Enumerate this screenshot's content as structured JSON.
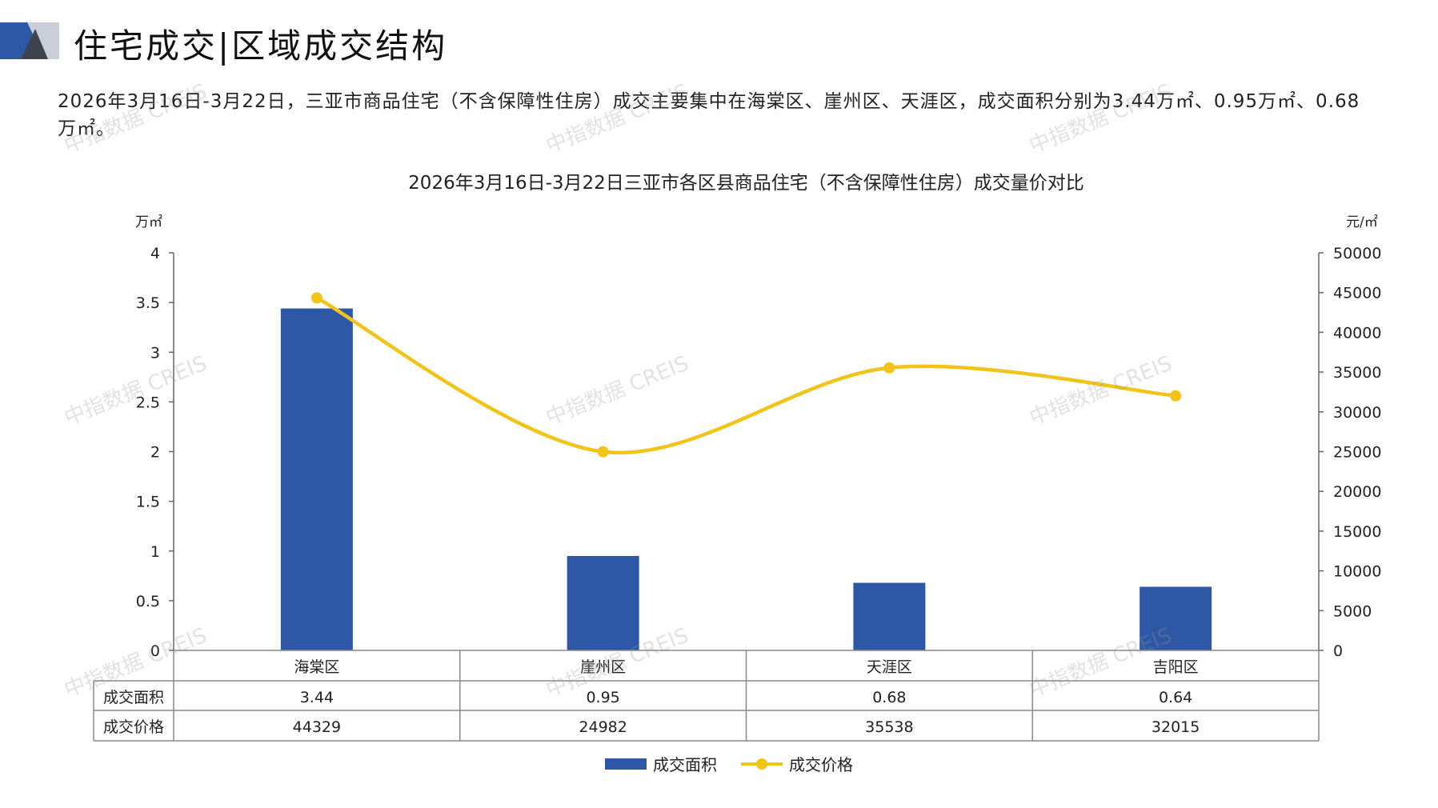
{
  "header": {
    "title": "住宅成交|区域成交结构"
  },
  "summary": {
    "text": "2026年3月16日-3月22日，三亚市商品住宅（不含保障性住房）成交主要集中在海棠区、崖州区、天涯区，成交面积分别为3.44万㎡、0.95万㎡、0.68万㎡。"
  },
  "watermark": {
    "text": "中指数据 CREIS"
  },
  "colors": {
    "bar": "#2E58A6",
    "line": "#F2C318",
    "brand_dark": "#2E58A6",
    "brand_light": "#C9CED8"
  },
  "chart_data": {
    "type": "bar",
    "title": "2026年3月16日-3月22日三亚市各区县商品住宅（不含保障性住房）成交量价对比",
    "categories": [
      "海棠区",
      "崖州区",
      "天涯区",
      "吉阳区"
    ],
    "y_left": {
      "unit": "万㎡",
      "min": 0,
      "max": 4,
      "ticks": [
        "0",
        "0.5",
        "1",
        "1.5",
        "2",
        "2.5",
        "3",
        "3.5",
        "4"
      ]
    },
    "y_right": {
      "unit": "元/㎡",
      "min": 0,
      "max": 50000,
      "ticks": [
        "0",
        "5000",
        "10000",
        "15000",
        "20000",
        "25000",
        "30000",
        "35000",
        "40000",
        "45000",
        "50000"
      ]
    },
    "series": [
      {
        "name": "成交面积",
        "type": "bar",
        "axis": "left",
        "values": [
          3.44,
          0.95,
          0.68,
          0.64
        ],
        "labels": [
          "3.44",
          "0.95",
          "0.68",
          "0.64"
        ]
      },
      {
        "name": "成交价格",
        "type": "line",
        "axis": "right",
        "values": [
          44329,
          24982,
          35538,
          32015
        ],
        "labels": [
          "44329",
          "24982",
          "35538",
          "32015"
        ]
      }
    ],
    "data_table": true,
    "legend_position": "bottom"
  }
}
